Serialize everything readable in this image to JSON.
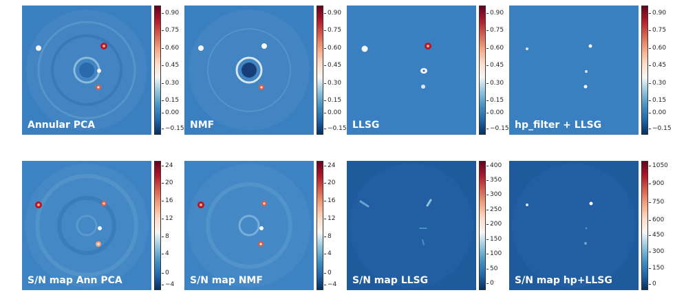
{
  "colormap": [
    "#053061",
    "#2166ac",
    "#4393c3",
    "#92c5de",
    "#f7f7f7",
    "#fddbc7",
    "#f4a582",
    "#d6604d",
    "#b2182b",
    "#67001f"
  ],
  "panels": [
    {
      "label": "Annular PCA",
      "bg": "#3a7fbf",
      "ring": true,
      "ticks": [
        "0.90",
        "0.75",
        "0.60",
        "0.45",
        "0.30",
        "0.15",
        "0.00",
        "−0.15"
      ]
    },
    {
      "label": "NMF",
      "bg": "#3a7fbf",
      "ring": true,
      "ticks": [
        "0.90",
        "0.75",
        "0.60",
        "0.45",
        "0.30",
        "0.15",
        "0.00",
        "−0.15"
      ]
    },
    {
      "label": "LLSG",
      "bg": "#3a80c0",
      "ring": false,
      "ticks": [
        "0.90",
        "0.75",
        "0.60",
        "0.45",
        "0.30",
        "0.15",
        "0.00",
        "−0.15"
      ]
    },
    {
      "label": "hp_filter + LLSG",
      "bg": "#3a80c0",
      "ring": false,
      "ticks": [
        "0.90",
        "0.75",
        "0.60",
        "0.45",
        "0.30",
        "0.15",
        "0.00",
        "−0.15"
      ]
    },
    {
      "label": "S/N map Ann PCA",
      "bg": "#3d82c2",
      "ring": true,
      "ticks": [
        "24",
        "20",
        "16",
        "12",
        "8",
        "4",
        "0",
        "−4"
      ]
    },
    {
      "label": "S/N map NMF",
      "bg": "#3d82c2",
      "ring": true,
      "ticks": [
        "24",
        "20",
        "16",
        "12",
        "8",
        "4",
        "0",
        "−4"
      ]
    },
    {
      "label": "S/N map LLSG",
      "bg": "#1f5a9c",
      "ring": false,
      "ticks": [
        "400",
        "350",
        "300",
        "250",
        "200",
        "150",
        "100",
        "50",
        "0"
      ]
    },
    {
      "label": "S/N map hp+LLSG",
      "bg": "#1f5a9c",
      "ring": false,
      "ticks": [
        "1050",
        "900",
        "750",
        "600",
        "450",
        "300",
        "150",
        "0"
      ]
    }
  ]
}
